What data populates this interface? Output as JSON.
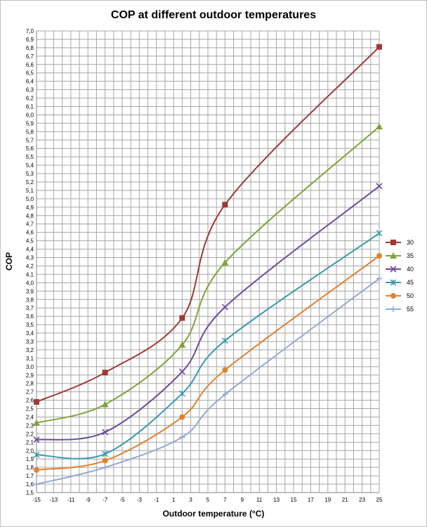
{
  "chart_data": {
    "type": "line",
    "title": "COP at different outdoor temperatures",
    "xlabel": "Outdoor temperature (°C)",
    "ylabel": "COP",
    "xlim": [
      -15,
      25
    ],
    "ylim": [
      1.5,
      7.0
    ],
    "x_ticks": [
      "-15",
      "-13",
      "-11",
      "-9",
      "-7",
      "-5",
      "-3",
      "-1",
      "1",
      "3",
      "5",
      "7",
      "9",
      "11",
      "13",
      "15",
      "17",
      "19",
      "21",
      "23",
      "25"
    ],
    "y_ticks": [
      "1,5",
      "1,6",
      "1,7",
      "1,8",
      "1,9",
      "2,0",
      "2,1",
      "2,2",
      "2,3",
      "2,4",
      "2,5",
      "2,6",
      "2,7",
      "2,8",
      "2,9",
      "3,0",
      "3,1",
      "3,2",
      "3,3",
      "3,4",
      "3,5",
      "3,6",
      "3,7",
      "3,8",
      "3,9",
      "4,0",
      "4,1",
      "4,2",
      "4,3",
      "4,4",
      "4,5",
      "4,6",
      "4,7",
      "4,8",
      "4,9",
      "5,0",
      "5,1",
      "5,2",
      "5,3",
      "5,4",
      "5,5",
      "5,6",
      "5,7",
      "5,8",
      "5,9",
      "6,0",
      "6,1",
      "6,2",
      "6,3",
      "6,4",
      "6,5",
      "6,6",
      "6,7",
      "6,8",
      "6,9",
      "7,0"
    ],
    "grid": true,
    "legend_position": "right",
    "x": [
      -15,
      -7,
      2,
      7,
      25
    ],
    "series": [
      {
        "name": "30",
        "values": [
          2.58,
          2.93,
          3.58,
          4.93,
          6.81
        ],
        "color": "#9e3a35",
        "marker": "square"
      },
      {
        "name": "35",
        "values": [
          2.33,
          2.55,
          3.26,
          4.24,
          5.86
        ],
        "color": "#7fa33a",
        "marker": "triangle"
      },
      {
        "name": "40",
        "values": [
          2.13,
          2.22,
          2.94,
          3.71,
          5.15
        ],
        "color": "#6c4a98",
        "marker": "x"
      },
      {
        "name": "45",
        "values": [
          1.95,
          1.96,
          2.68,
          3.31,
          4.59
        ],
        "color": "#3a99ad",
        "marker": "star"
      },
      {
        "name": "50",
        "values": [
          1.77,
          1.88,
          2.4,
          2.96,
          4.32
        ],
        "color": "#e0812e",
        "marker": "circle"
      },
      {
        "name": "55",
        "values": [
          1.6,
          1.8,
          2.16,
          2.67,
          4.05
        ],
        "color": "#93a9cf",
        "marker": "plus"
      }
    ]
  }
}
